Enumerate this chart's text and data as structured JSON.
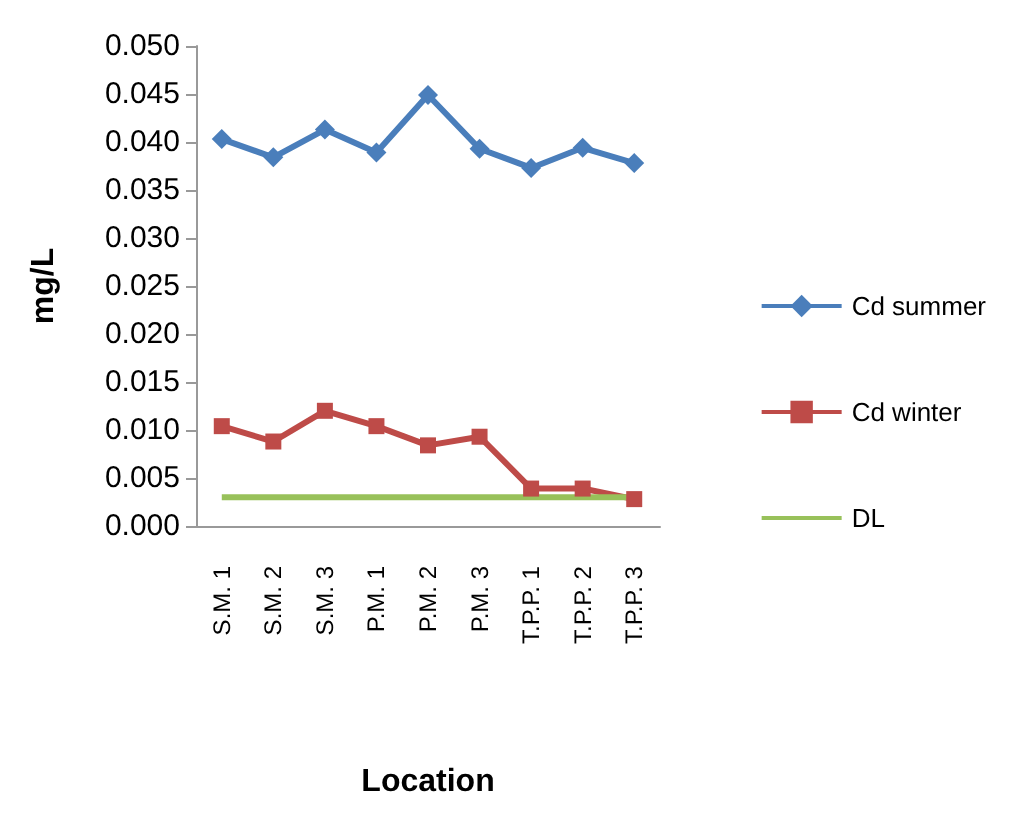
{
  "chart_data": {
    "type": "line",
    "xlabel": "Location",
    "ylabel": "mg/L",
    "categories": [
      "S.M. 1",
      "S.M. 2",
      "S.M. 3",
      "P.M. 1",
      "P.M. 2",
      "P.M. 3",
      "T.P.P. 1",
      "T.P.P. 2",
      "T.P.P. 3"
    ],
    "series": [
      {
        "name": "Cd summer",
        "color": "#4a7ebb",
        "marker": "diamond",
        "values": [
          0.0403,
          0.0384,
          0.0413,
          0.0389,
          0.0449,
          0.0393,
          0.0373,
          0.0394,
          0.0378
        ]
      },
      {
        "name": "Cd winter",
        "color": "#be4b48",
        "marker": "square",
        "values": [
          0.0104,
          0.0088,
          0.012,
          0.0104,
          0.0084,
          0.0093,
          0.0039,
          0.0039,
          0.0028
        ]
      },
      {
        "name": "DL",
        "color": "#98c15a",
        "marker": "none",
        "values": [
          0.003,
          0.003,
          0.003,
          0.003,
          0.003,
          0.003,
          0.003,
          0.003,
          0.003
        ]
      }
    ],
    "ylim": [
      0,
      0.05
    ],
    "yticks": [
      {
        "value": 0,
        "label": "0.000"
      },
      {
        "value": 0.005,
        "label": "0.005"
      },
      {
        "value": 0.01,
        "label": "0.010"
      },
      {
        "value": 0.015,
        "label": "0.015"
      },
      {
        "value": 0.02,
        "label": "0.020"
      },
      {
        "value": 0.025,
        "label": "0.025"
      },
      {
        "value": 0.03,
        "label": "0.030"
      },
      {
        "value": 0.035,
        "label": "0.035"
      },
      {
        "value": 0.04,
        "label": "0.040"
      },
      {
        "value": 0.045,
        "label": "0.045"
      },
      {
        "value": 0.05,
        "label": "0.050"
      }
    ],
    "grid": false,
    "legend": "right"
  }
}
